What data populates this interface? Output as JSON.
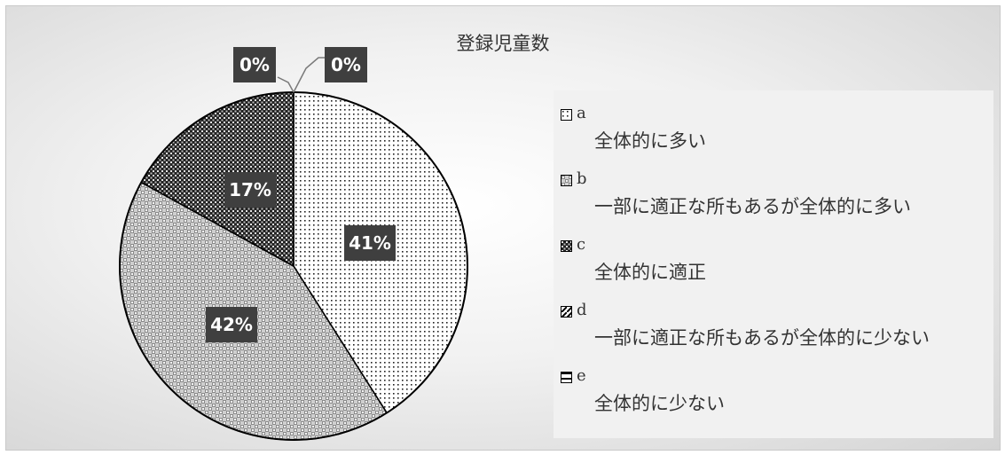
{
  "chart_data": {
    "type": "pie",
    "title": "登録児童数",
    "categories": [
      "a",
      "b",
      "c",
      "d",
      "e"
    ],
    "category_descriptions": [
      "全体的に多い",
      "一部に適正な所もあるが全体的に多い",
      "全体的に適正",
      "一部に適正な所もあるが全体的に少ない",
      "全体的に少ない"
    ],
    "values": [
      41,
      42,
      17,
      0,
      0
    ],
    "data_labels": [
      "41%",
      "42%",
      "17%",
      "0%",
      "0%"
    ],
    "legend_position": "right"
  }
}
